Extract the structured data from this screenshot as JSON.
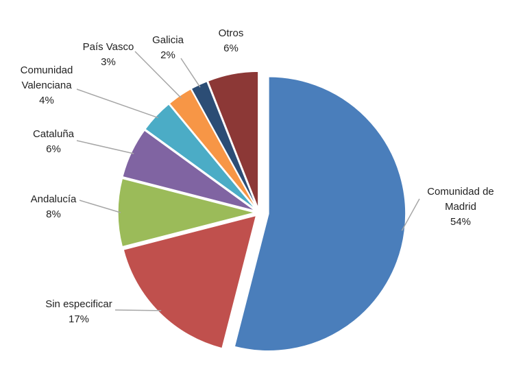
{
  "chart_data": {
    "type": "pie",
    "categories": [
      "Comunidad de Madrid",
      "Sin especificar",
      "Andalucía",
      "Cataluña",
      "Comunidad Valenciana",
      "País Vasco",
      "Galicia",
      "Otros"
    ],
    "values": [
      54,
      17,
      8,
      6,
      4,
      3,
      2,
      6
    ],
    "value_labels": [
      "54%",
      "17%",
      "8%",
      "6%",
      "4%",
      "3%",
      "2%",
      "6%"
    ],
    "colors": [
      "#4a7ebb",
      "#c0504d",
      "#9bbb59",
      "#8064a2",
      "#4bacc6",
      "#f79646",
      "#2c4d75",
      "#8c3836"
    ]
  }
}
